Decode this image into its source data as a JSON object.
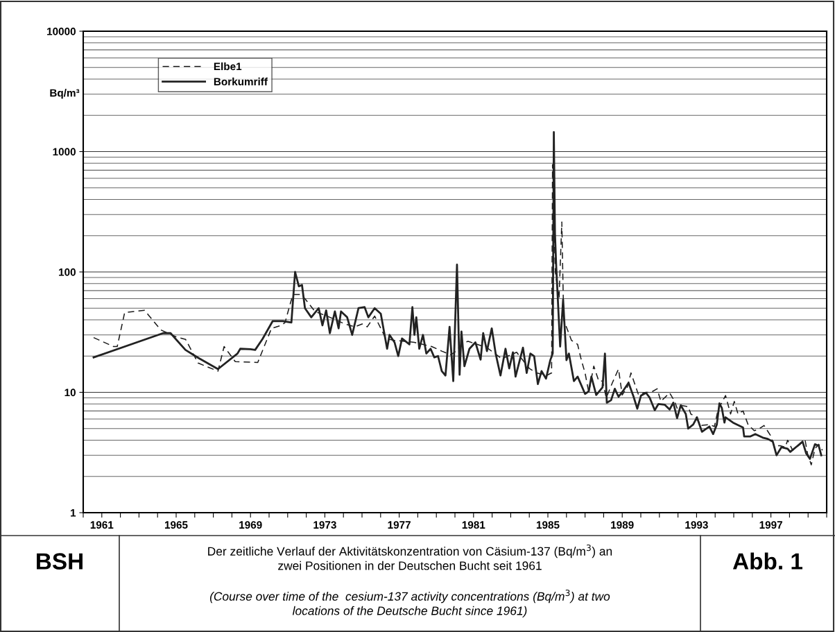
{
  "chart_data": {
    "type": "line",
    "ylabel": "Bq/m³",
    "log": "y",
    "grid": "y",
    "legend": "top left",
    "xlim": [
      1960,
      2000
    ],
    "xticks": [
      {
        "value": 1960,
        "label": null
      },
      {
        "value": 1961,
        "label": "1961"
      },
      {
        "value": 1962,
        "label": null
      },
      {
        "value": 1963,
        "label": null
      },
      {
        "value": 1964,
        "label": null
      },
      {
        "value": 1965,
        "label": "1965"
      },
      {
        "value": 1966,
        "label": null
      },
      {
        "value": 1967,
        "label": null
      },
      {
        "value": 1968,
        "label": null
      },
      {
        "value": 1969,
        "label": "1969"
      },
      {
        "value": 1970,
        "label": null
      },
      {
        "value": 1971,
        "label": null
      },
      {
        "value": 1972,
        "label": null
      },
      {
        "value": 1973,
        "label": "1973"
      },
      {
        "value": 1974,
        "label": null
      },
      {
        "value": 1975,
        "label": null
      },
      {
        "value": 1976,
        "label": null
      },
      {
        "value": 1977,
        "label": "1977"
      },
      {
        "value": 1978,
        "label": null
      },
      {
        "value": 1979,
        "label": null
      },
      {
        "value": 1980,
        "label": null
      },
      {
        "value": 1981,
        "label": "1981"
      },
      {
        "value": 1982,
        "label": null
      },
      {
        "value": 1983,
        "label": null
      },
      {
        "value": 1984,
        "label": null
      },
      {
        "value": 1985,
        "label": "1985"
      },
      {
        "value": 1986,
        "label": null
      },
      {
        "value": 1987,
        "label": null
      },
      {
        "value": 1988,
        "label": null
      },
      {
        "value": 1989,
        "label": "1989"
      },
      {
        "value": 1990,
        "label": null
      },
      {
        "value": 1991,
        "label": null
      },
      {
        "value": 1992,
        "label": null
      },
      {
        "value": 1993,
        "label": "1993"
      },
      {
        "value": 1994,
        "label": null
      },
      {
        "value": 1995,
        "label": null
      },
      {
        "value": 1996,
        "label": null
      },
      {
        "value": 1997,
        "label": "1997"
      },
      {
        "value": 1998,
        "label": null
      },
      {
        "value": 1999,
        "label": null
      },
      {
        "value": 2000,
        "label": null
      }
    ],
    "ylim": [
      1,
      10000
    ],
    "yticks": [
      1,
      10,
      100,
      1000,
      10000
    ],
    "series": [
      {
        "name": "Elbe1",
        "color": "#1a1a1a",
        "line_style": "dashed",
        "x": [
          1960.56,
          1961.63,
          1961.83,
          1962.23,
          1963.3,
          1964.17,
          1964.97,
          1965.51,
          1966.18,
          1967.25,
          1967.58,
          1968.18,
          1969.39,
          1970.13,
          1970.66,
          1970.86,
          1971.13,
          1971.29,
          1971.66,
          1971.93,
          1972.47,
          1973.27,
          1974.07,
          1974.61,
          1975.01,
          1975.28,
          1975.68,
          1976.28,
          1976.75,
          1977.82,
          1978.75,
          1979.29,
          1979.76,
          1979.98,
          1980.51,
          1980.71,
          1981.72,
          1982.52,
          1983.32,
          1984.0,
          1984.39,
          1984.93,
          1985.2,
          1985.25,
          1985.4,
          1985.6,
          1985.75,
          1985.85,
          1986.27,
          1986.6,
          1986.8,
          1987.0,
          1987.2,
          1987.47,
          1987.74,
          1987.94,
          1988.14,
          1988.47,
          1988.8,
          1989.0,
          1989.27,
          1989.47,
          1989.88,
          1990.28,
          1990.55,
          1990.88,
          1991.08,
          1991.55,
          1991.82,
          1991.95,
          1992.15,
          1992.55,
          1992.69,
          1992.95,
          1993.22,
          1993.69,
          1993.96,
          1994.16,
          1994.56,
          1994.83,
          1995.03,
          1995.23,
          1995.5,
          1995.77,
          1996.1,
          1996.3,
          1996.63,
          1996.97,
          1997.17,
          1997.5,
          1997.77,
          1997.9,
          1998.17,
          1998.57,
          1998.84,
          1998.97,
          1999.17,
          1999.37,
          1999.57,
          1999.77
        ],
        "values": [
          28.5,
          24,
          24,
          46,
          48,
          33,
          29,
          27.5,
          17.5,
          15,
          24,
          18,
          17.7,
          34,
          36,
          38,
          54,
          65,
          65,
          60,
          47,
          42,
          37,
          35,
          37,
          35,
          43,
          28,
          27,
          26,
          24,
          22,
          20.5,
          21.5,
          26,
          26.5,
          23.5,
          19,
          21.5,
          15.8,
          14.5,
          13.8,
          14.5,
          780,
          100,
          60,
          260,
          40,
          27,
          25,
          18.5,
          14.5,
          10,
          16.5,
          12.4,
          12.4,
          9,
          12,
          15.6,
          9.5,
          11,
          14.5,
          9.5,
          10,
          10,
          10.7,
          8.4,
          9.9,
          8.4,
          7.4,
          7.8,
          7.6,
          6.6,
          6.3,
          5.3,
          5.4,
          5.2,
          7.2,
          9.4,
          6.6,
          8.4,
          6.6,
          7,
          5.4,
          4.8,
          4.9,
          5.3,
          4.4,
          3.6,
          3.6,
          3.5,
          4.0,
          3.3,
          3.7,
          4.0,
          3.1,
          2.5,
          3.4,
          3.7,
          3.3
        ]
      },
      {
        "name": "Borkumriff",
        "color": "#222222",
        "line_style": "solid",
        "x": [
          1960.56,
          1964.3,
          1964.7,
          1965.5,
          1966.2,
          1967.25,
          1968.3,
          1968.45,
          1969.0,
          1969.25,
          1969.65,
          1970.19,
          1970.73,
          1971.2,
          1971.26,
          1971.4,
          1971.6,
          1971.77,
          1971.93,
          1972.27,
          1972.67,
          1972.87,
          1973.07,
          1973.27,
          1973.54,
          1973.74,
          1973.87,
          1974.2,
          1974.47,
          1974.81,
          1975.14,
          1975.34,
          1975.68,
          1976.01,
          1976.35,
          1976.48,
          1976.75,
          1976.95,
          1977.15,
          1977.55,
          1977.71,
          1977.82,
          1977.92,
          1978.08,
          1978.28,
          1978.46,
          1978.69,
          1978.89,
          1979.09,
          1979.29,
          1979.49,
          1979.71,
          1979.91,
          1980.11,
          1980.25,
          1980.35,
          1980.51,
          1980.78,
          1981.1,
          1981.38,
          1981.52,
          1981.72,
          1981.98,
          1982.19,
          1982.45,
          1982.72,
          1982.92,
          1983.12,
          1983.26,
          1983.66,
          1983.86,
          1984.06,
          1984.26,
          1984.46,
          1984.66,
          1984.9,
          1985.13,
          1985.26,
          1985.32,
          1985.38,
          1985.45,
          1985.66,
          1985.82,
          1986.0,
          1986.13,
          1986.4,
          1986.6,
          1987.0,
          1987.2,
          1987.34,
          1987.6,
          1987.94,
          1988.07,
          1988.17,
          1988.4,
          1988.6,
          1988.8,
          1989.07,
          1989.34,
          1989.61,
          1989.81,
          1990.01,
          1990.28,
          1990.48,
          1990.75,
          1990.95,
          1991.28,
          1991.55,
          1991.75,
          1991.95,
          1992.15,
          1992.42,
          1992.55,
          1992.82,
          1993.02,
          1993.29,
          1993.69,
          1993.89,
          1994.09,
          1994.23,
          1994.36,
          1994.5,
          1994.56,
          1994.96,
          1995.5,
          1995.56,
          1995.9,
          1996.16,
          1996.56,
          1996.83,
          1997.1,
          1997.3,
          1997.57,
          1997.9,
          1998.04,
          1998.44,
          1998.7,
          1998.9,
          1999.1,
          1999.37,
          1999.57,
          1999.71
        ],
        "values": [
          19.5,
          31,
          31,
          22.5,
          19.3,
          15.6,
          21,
          23,
          22.8,
          22.5,
          27.8,
          39,
          39,
          38,
          51,
          100,
          76,
          78,
          50,
          42,
          50,
          36,
          48,
          31,
          47,
          34,
          47,
          42,
          30,
          50,
          51,
          42,
          50,
          45,
          23,
          30,
          26,
          20,
          28,
          25,
          51,
          30,
          42,
          23,
          30,
          21,
          23,
          19.5,
          20,
          15,
          13.8,
          35,
          12.4,
          115,
          14,
          32,
          16.5,
          23,
          26,
          18.7,
          31,
          22,
          34,
          21,
          13.8,
          23,
          15.8,
          21.5,
          13.5,
          23.5,
          14.5,
          21,
          20,
          11.7,
          15,
          13,
          18.5,
          21,
          1450,
          210,
          110,
          24,
          59,
          18.5,
          21,
          12.4,
          13.5,
          9.7,
          10.2,
          13.5,
          9.5,
          11,
          21,
          8.2,
          8.6,
          10.7,
          9.2,
          10.4,
          12,
          9.2,
          7.3,
          9.4,
          9.9,
          9,
          7.1,
          8,
          7.9,
          7.2,
          8.2,
          6.1,
          7.8,
          6.6,
          5.0,
          5.4,
          6.2,
          4.7,
          5.2,
          4.5,
          5.4,
          8.1,
          7.4,
          5.6,
          6.2,
          5.6,
          5.1,
          4.3,
          4.3,
          4.5,
          4.2,
          4.1,
          3.9,
          3.0,
          3.5,
          3.4,
          3.2,
          3.6,
          3.9,
          3.1,
          2.8,
          3.7,
          3.6,
          3.0
        ]
      }
    ],
    "annotations": [
      "BSH",
      "Der zeitliche Verlauf der Aktivitätskonzentration von Cäsium-137 (Bq/m$^{3}$) an\nzwei Positionen in der Deutschen Bucht seit 1961",
      "(Course over time of the  cesium-137 activity concentrations (Bq/m$^{3}$) at two\nlocations of the Deutsche Bucht since 1961)",
      "Abb. 1"
    ]
  }
}
